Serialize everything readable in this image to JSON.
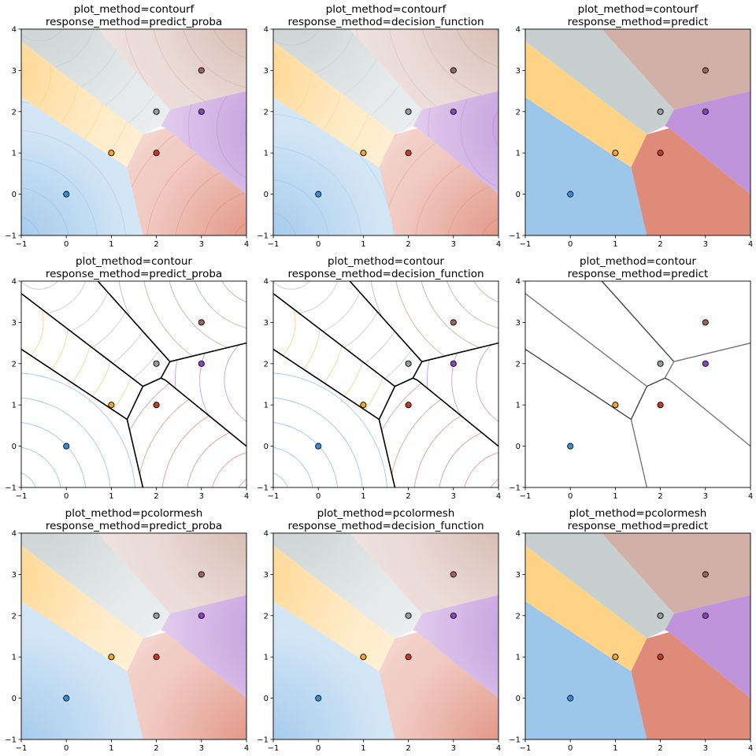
{
  "palette": {
    "blue": "#3a8ed6",
    "orange": "#f6a623",
    "gray": "#949c9c",
    "red": "#c23b24",
    "brown": "#9b6458",
    "purple": "#8e3fc9",
    "fill_blue": "#9cc6ea",
    "fill_orange": "#ffd386",
    "fill_gray": "#c7cfcf",
    "fill_red": "#df8b7a",
    "fill_brown": "#d1b0a7",
    "fill_purple": "#c094da"
  },
  "chart_data": [
    {
      "type": "scatter",
      "title_line1": "plot_method=contourf",
      "title_line2": "response_method=predict_proba",
      "xlim": [
        -1,
        4
      ],
      "ylim": [
        -1,
        4
      ],
      "xticks": [
        -1,
        0,
        1,
        2,
        3,
        4
      ],
      "yticks": [
        -1,
        0,
        1,
        2,
        3,
        4
      ],
      "points": [
        {
          "x": 0,
          "y": 0
        },
        {
          "x": 1,
          "y": 1
        },
        {
          "x": 2,
          "y": 2
        },
        {
          "x": 2,
          "y": 1
        },
        {
          "x": 3,
          "y": 3
        },
        {
          "x": 3,
          "y": 2
        }
      ]
    },
    {
      "type": "scatter",
      "title_line1": "plot_method=contourf",
      "title_line2": "response_method=decision_function",
      "xlim": [
        -1,
        4
      ],
      "ylim": [
        -1,
        4
      ],
      "xticks": [
        -1,
        0,
        1,
        2,
        3,
        4
      ],
      "yticks": [
        -1,
        0,
        1,
        2,
        3,
        4
      ],
      "points": [
        {
          "x": 0,
          "y": 0
        },
        {
          "x": 1,
          "y": 1
        },
        {
          "x": 2,
          "y": 2
        },
        {
          "x": 2,
          "y": 1
        },
        {
          "x": 3,
          "y": 3
        },
        {
          "x": 3,
          "y": 2
        }
      ]
    },
    {
      "type": "scatter",
      "title_line1": "plot_method=contourf",
      "title_line2": "response_method=predict",
      "xlim": [
        -1,
        4
      ],
      "ylim": [
        -1,
        4
      ],
      "xticks": [
        -1,
        0,
        1,
        2,
        3,
        4
      ],
      "yticks": [
        -1,
        0,
        1,
        2,
        3,
        4
      ],
      "points": [
        {
          "x": 0,
          "y": 0
        },
        {
          "x": 1,
          "y": 1
        },
        {
          "x": 2,
          "y": 2
        },
        {
          "x": 2,
          "y": 1
        },
        {
          "x": 3,
          "y": 3
        },
        {
          "x": 3,
          "y": 2
        }
      ]
    },
    {
      "type": "scatter",
      "title_line1": "plot_method=contour",
      "title_line2": "response_method=predict_proba",
      "xlim": [
        -1,
        4
      ],
      "ylim": [
        -1,
        4
      ],
      "xticks": [
        -1,
        0,
        1,
        2,
        3,
        4
      ],
      "yticks": [
        -1,
        0,
        1,
        2,
        3,
        4
      ],
      "points": [
        {
          "x": 0,
          "y": 0
        },
        {
          "x": 1,
          "y": 1
        },
        {
          "x": 2,
          "y": 2
        },
        {
          "x": 2,
          "y": 1
        },
        {
          "x": 3,
          "y": 3
        },
        {
          "x": 3,
          "y": 2
        }
      ]
    },
    {
      "type": "scatter",
      "title_line1": "plot_method=contour",
      "title_line2": "response_method=decision_function",
      "xlim": [
        -1,
        4
      ],
      "ylim": [
        -1,
        4
      ],
      "xticks": [
        -1,
        0,
        1,
        2,
        3,
        4
      ],
      "yticks": [
        -1,
        0,
        1,
        2,
        3,
        4
      ],
      "points": [
        {
          "x": 0,
          "y": 0
        },
        {
          "x": 1,
          "y": 1
        },
        {
          "x": 2,
          "y": 2
        },
        {
          "x": 2,
          "y": 1
        },
        {
          "x": 3,
          "y": 3
        },
        {
          "x": 3,
          "y": 2
        }
      ]
    },
    {
      "type": "scatter",
      "title_line1": "plot_method=contour",
      "title_line2": "response_method=predict",
      "xlim": [
        -1,
        4
      ],
      "ylim": [
        -1,
        4
      ],
      "xticks": [
        -1,
        0,
        1,
        2,
        3,
        4
      ],
      "yticks": [
        -1,
        0,
        1,
        2,
        3,
        4
      ],
      "points": [
        {
          "x": 0,
          "y": 0
        },
        {
          "x": 1,
          "y": 1
        },
        {
          "x": 2,
          "y": 2
        },
        {
          "x": 2,
          "y": 1
        },
        {
          "x": 3,
          "y": 3
        },
        {
          "x": 3,
          "y": 2
        }
      ]
    },
    {
      "type": "scatter",
      "title_line1": "plot_method=pcolormesh",
      "title_line2": "response_method=predict_proba",
      "xlim": [
        -1,
        4
      ],
      "ylim": [
        -1,
        4
      ],
      "xticks": [
        -1,
        0,
        1,
        2,
        3,
        4
      ],
      "yticks": [
        -1,
        0,
        1,
        2,
        3,
        4
      ],
      "points": [
        {
          "x": 0,
          "y": 0
        },
        {
          "x": 1,
          "y": 1
        },
        {
          "x": 2,
          "y": 2
        },
        {
          "x": 2,
          "y": 1
        },
        {
          "x": 3,
          "y": 3
        },
        {
          "x": 3,
          "y": 2
        }
      ]
    },
    {
      "type": "scatter",
      "title_line1": "plot_method=pcolormesh",
      "title_line2": "response_method=decision_function",
      "xlim": [
        -1,
        4
      ],
      "ylim": [
        -1,
        4
      ],
      "xticks": [
        -1,
        0,
        1,
        2,
        3,
        4
      ],
      "yticks": [
        -1,
        0,
        1,
        2,
        3,
        4
      ],
      "points": [
        {
          "x": 0,
          "y": 0
        },
        {
          "x": 1,
          "y": 1
        },
        {
          "x": 2,
          "y": 2
        },
        {
          "x": 2,
          "y": 1
        },
        {
          "x": 3,
          "y": 3
        },
        {
          "x": 3,
          "y": 2
        }
      ]
    },
    {
      "type": "scatter",
      "title_line1": "plot_method=pcolormesh",
      "title_line2": "response_method=predict",
      "xlim": [
        -1,
        4
      ],
      "ylim": [
        -1,
        4
      ],
      "xticks": [
        -1,
        0,
        1,
        2,
        3,
        4
      ],
      "yticks": [
        -1,
        0,
        1,
        2,
        3,
        4
      ],
      "points": [
        {
          "x": 0,
          "y": 0
        },
        {
          "x": 1,
          "y": 1
        },
        {
          "x": 2,
          "y": 2
        },
        {
          "x": 2,
          "y": 1
        },
        {
          "x": 3,
          "y": 3
        },
        {
          "x": 3,
          "y": 2
        }
      ]
    }
  ]
}
